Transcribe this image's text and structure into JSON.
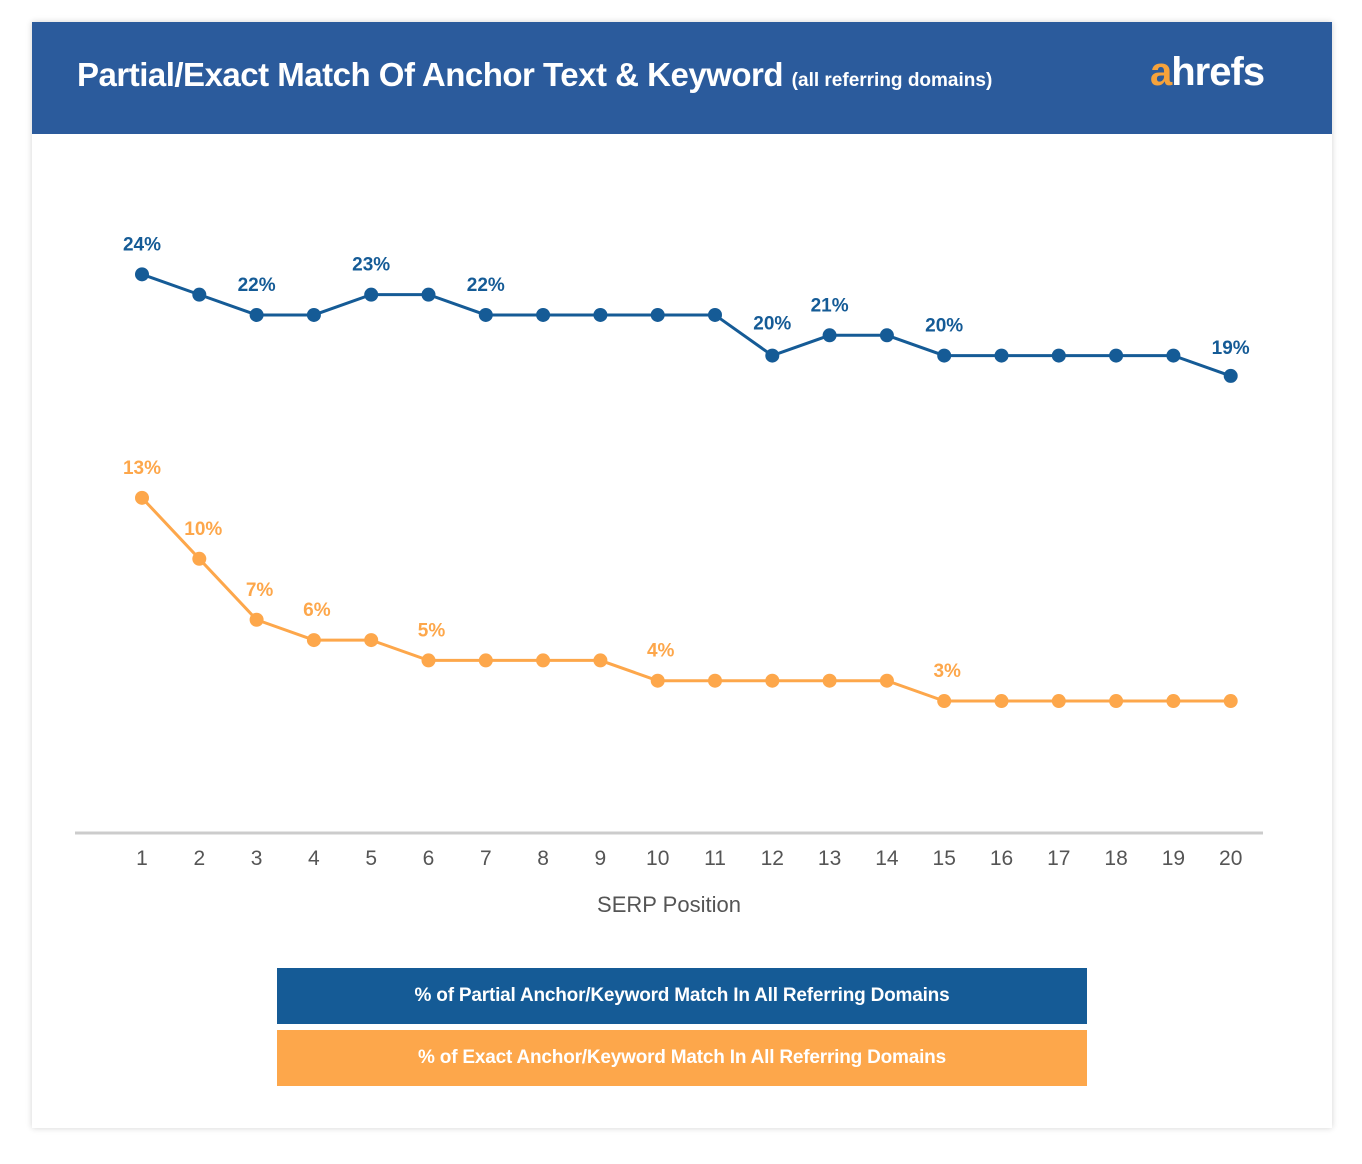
{
  "header": {
    "title": "Partial/Exact Match Of Anchor Text & Keyword",
    "subtitle": "(all referring domains)",
    "logo_prefix": "a",
    "logo_rest": "hrefs"
  },
  "colors": {
    "header_bg": "#2b5b9c",
    "partial": "#155b96",
    "exact": "#fda74b",
    "axis": "#cccccc",
    "logo_accent": "#f5a23b"
  },
  "chart_data": {
    "type": "line",
    "xlabel": "SERP Position",
    "ylabel": "",
    "x": [
      1,
      2,
      3,
      4,
      5,
      6,
      7,
      8,
      9,
      10,
      11,
      12,
      13,
      14,
      15,
      16,
      17,
      18,
      19,
      20
    ],
    "ylim": [
      0,
      25
    ],
    "grid": false,
    "legend_position": "bottom",
    "series": [
      {
        "name": "% of Partial Anchor/Keyword Match In All Referring Domains",
        "color": "#155b96",
        "values": [
          24,
          23,
          22,
          22,
          23,
          23,
          22,
          22,
          22,
          22,
          22,
          20,
          21,
          21,
          20,
          20,
          20,
          20,
          20,
          19
        ],
        "labels": [
          {
            "x": 1,
            "text": "24%"
          },
          {
            "x": 3,
            "text": "22%"
          },
          {
            "x": 5,
            "text": "23%"
          },
          {
            "x": 7,
            "text": "22%"
          },
          {
            "x": 12,
            "text": "20%"
          },
          {
            "x": 13,
            "text": "21%"
          },
          {
            "x": 15,
            "text": "20%"
          },
          {
            "x": 20,
            "text": "19%"
          }
        ]
      },
      {
        "name": "% of Exact Anchor/Keyword Match In All Referring Domains",
        "color": "#fda74b",
        "values": [
          13,
          10,
          7,
          6,
          6,
          5,
          5,
          5,
          5,
          4,
          4,
          4,
          4,
          4,
          3,
          3,
          3,
          3,
          3,
          3
        ],
        "labels": [
          {
            "x": 1,
            "text": "13%"
          },
          {
            "x": 2,
            "text": "10%"
          },
          {
            "x": 3,
            "text": "7%"
          },
          {
            "x": 4,
            "text": "6%"
          },
          {
            "x": 6,
            "text": "5%"
          },
          {
            "x": 10,
            "text": "4%"
          },
          {
            "x": 15,
            "text": "3%"
          }
        ]
      }
    ]
  }
}
